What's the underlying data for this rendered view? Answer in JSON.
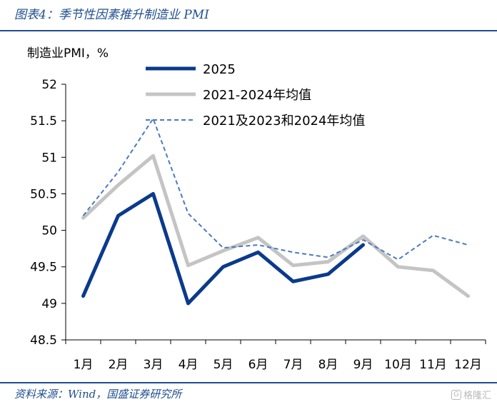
{
  "figure": {
    "title": "图表4：季节性因素推升制造业 PMI",
    "source": "资料来源：Wind，国盛证券研究所",
    "watermark": {
      "icon": "G",
      "text": "格隆汇"
    }
  },
  "chart_data": {
    "type": "line",
    "ylabel": "制造业PMI，%",
    "ylim": [
      48.5,
      52
    ],
    "yticks": [
      48.5,
      49,
      49.5,
      50,
      50.5,
      51,
      51.5,
      52
    ],
    "ytick_labels": [
      "48.5",
      "49",
      "49.5",
      "50",
      "50.5",
      "51",
      "51.5",
      "52"
    ],
    "categories": [
      "1月",
      "2月",
      "3月",
      "4月",
      "5月",
      "6月",
      "7月",
      "8月",
      "9月",
      "10月",
      "11月",
      "12月"
    ],
    "legend_position": "top",
    "series": [
      {
        "name": "2025",
        "color": "#0a3a8c",
        "style": "solid-thick",
        "values": [
          49.1,
          50.2,
          50.5,
          49.0,
          49.5,
          49.7,
          49.3,
          49.4,
          49.8,
          null,
          null,
          null
        ]
      },
      {
        "name": "2021-2024年均值",
        "color": "#c4c4c4",
        "style": "solid-thick",
        "values": [
          50.17,
          50.62,
          51.02,
          49.52,
          49.72,
          49.9,
          49.52,
          49.57,
          49.92,
          49.5,
          49.45,
          49.1
        ]
      },
      {
        "name": "2021及2023和2024年均值",
        "color": "#4a7bbf",
        "style": "dashed",
        "values": [
          50.2,
          50.8,
          51.53,
          50.23,
          49.76,
          49.8,
          49.7,
          49.63,
          49.87,
          49.6,
          49.93,
          49.8
        ]
      }
    ]
  }
}
